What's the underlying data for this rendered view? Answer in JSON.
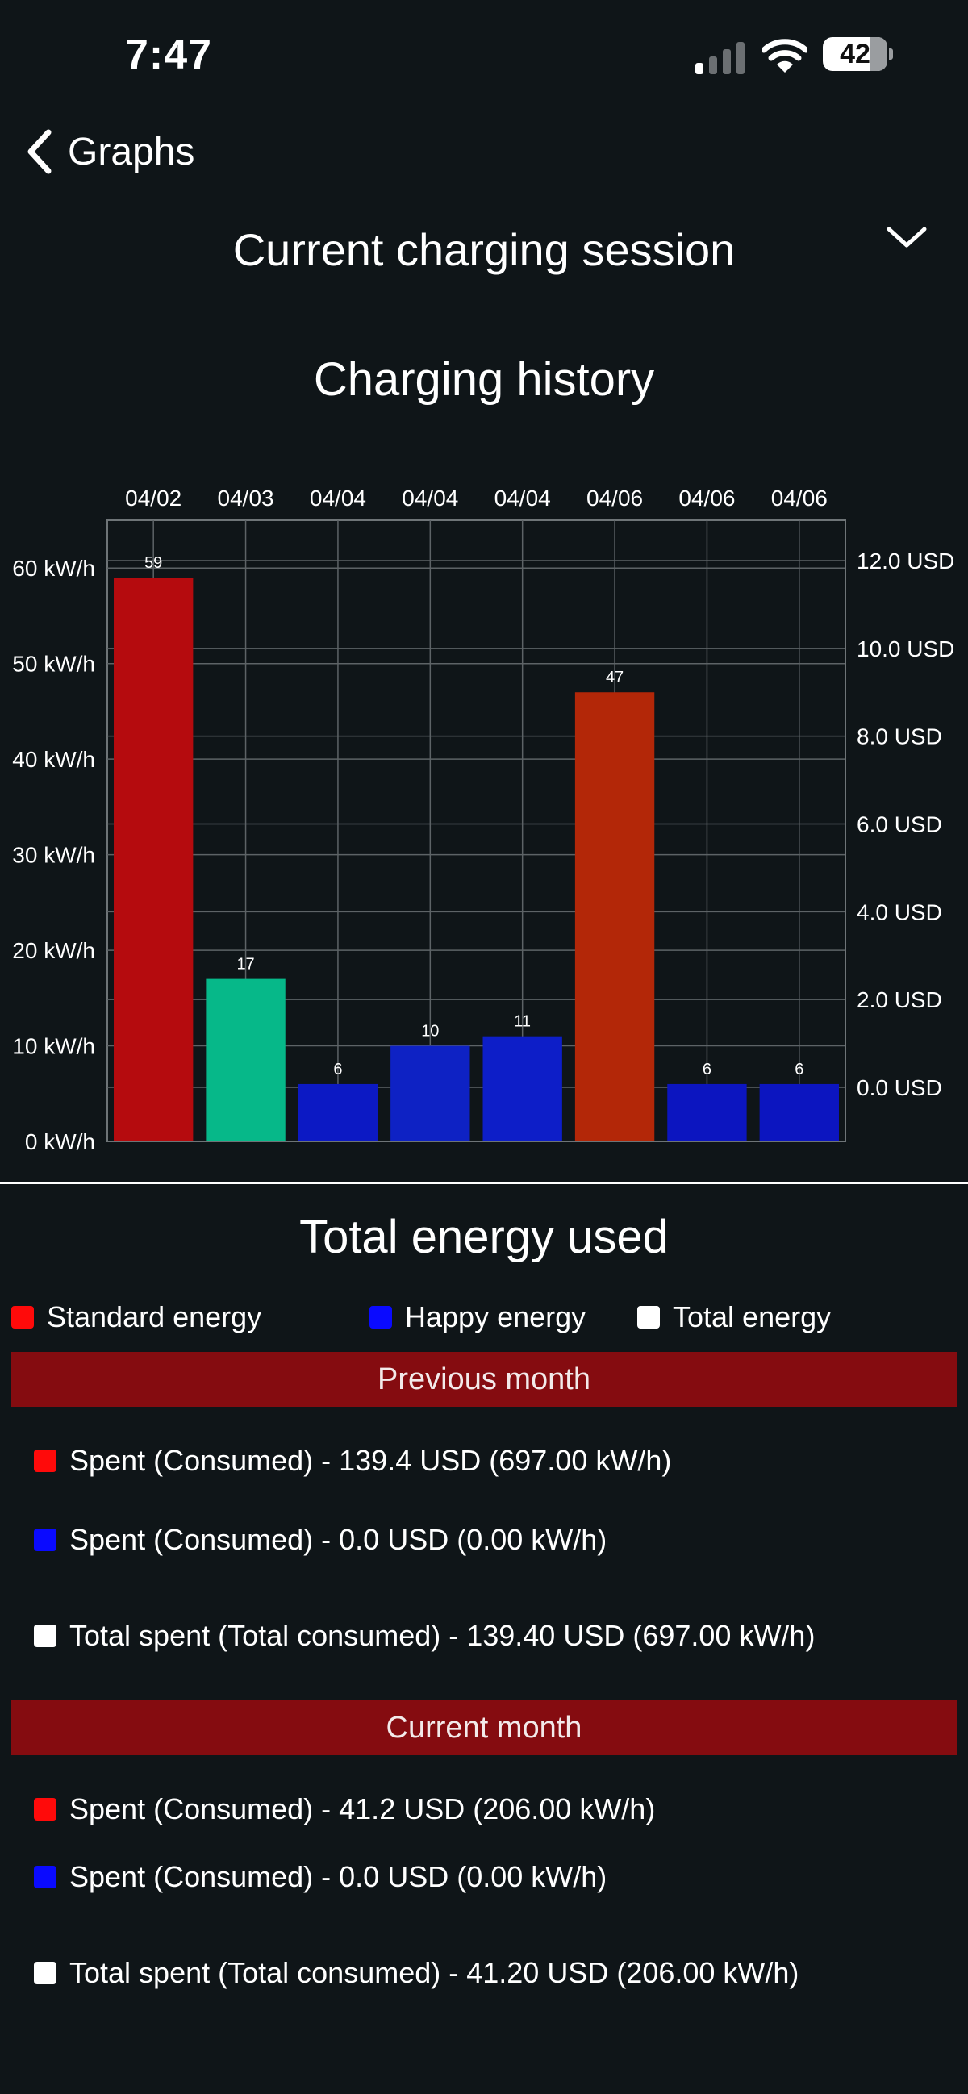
{
  "status_bar": {
    "time": "7:47",
    "battery": "42"
  },
  "nav": {
    "back_label": "Graphs"
  },
  "session_selector": {
    "selected": "Current charging session"
  },
  "chart_title": "Charging history",
  "colors": {
    "background": "#0f1518",
    "standard": "#ff0a0a",
    "happy": "#0a0aff",
    "total": "#ffffff",
    "month_header": "#850c10"
  },
  "chart_data": {
    "type": "bar",
    "title": "Charging history",
    "categories": [
      "04/02",
      "04/03",
      "04/04",
      "04/04",
      "04/04",
      "04/06",
      "04/06",
      "04/06"
    ],
    "values": [
      59,
      17,
      6,
      10,
      11,
      47,
      6,
      6
    ],
    "bar_colors": [
      "#b50b0e",
      "#06b889",
      "#0c19c4",
      "#0e22c4",
      "#0d1ec8",
      "#b32708",
      "#0c15c0",
      "#0c15c0"
    ],
    "y_left": {
      "ticks": [
        "0 kW/h",
        "10 kW/h",
        "20 kW/h",
        "30 kW/h",
        "40 kW/h",
        "50 kW/h",
        "60 kW/h"
      ],
      "range": [
        0,
        60
      ]
    },
    "y_right": {
      "ticks": [
        "0.0 USD",
        "2.0 USD",
        "4.0 USD",
        "6.0 USD",
        "8.0 USD",
        "10.0 USD",
        "12.0 USD"
      ]
    },
    "grid": true,
    "x_axis_position": "top"
  },
  "energy": {
    "title": "Total energy used",
    "legend": {
      "standard": "Standard energy",
      "happy": "Happy energy",
      "total": "Total energy"
    },
    "previous_month": {
      "label": "Previous month",
      "standard": "Spent (Consumed) - 139.4 USD (697.00 kW/h)",
      "happy": "Spent (Consumed) - 0.0 USD (0.00  kW/h)",
      "total": "Total spent (Total consumed) - 139.40 USD (697.00  kW/h)"
    },
    "current_month": {
      "label": "Current month",
      "standard": "Spent (Consumed) - 41.2 USD (206.00 kW/h)",
      "happy": "Spent (Consumed) - 0.0 USD (0.00 kW/h)",
      "total": "Total spent (Total consumed) - 41.20 USD (206.00  kW/h)"
    }
  }
}
